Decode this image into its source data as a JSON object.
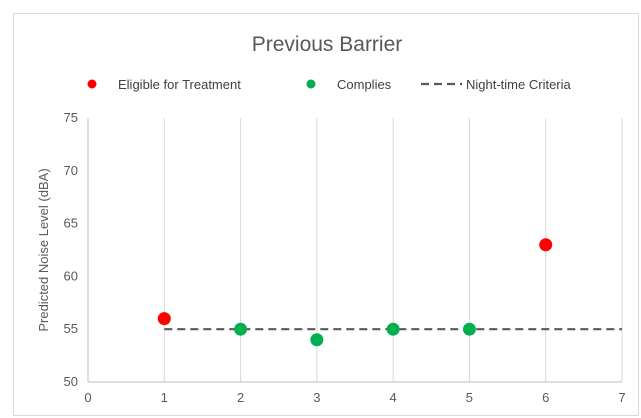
{
  "chart_data": {
    "type": "scatter",
    "title": "Previous Barrier",
    "xlabel": "",
    "ylabel": "Predicted Noise Level  (dBA)",
    "xlim": [
      0,
      7
    ],
    "ylim": [
      50,
      75
    ],
    "x_ticks": [
      "0",
      "1",
      "2",
      "3",
      "4",
      "5",
      "6",
      "7"
    ],
    "y_ticks": [
      "50",
      "55",
      "60",
      "65",
      "70",
      "75"
    ],
    "grid": "vertical",
    "legend_position": "top",
    "series": [
      {
        "name": "Eligible for Treatment",
        "kind": "scatter",
        "color": "#ff0000",
        "points": [
          {
            "x": 1,
            "y": 56
          },
          {
            "x": 6,
            "y": 63
          }
        ]
      },
      {
        "name": "Complies",
        "kind": "scatter",
        "color": "#00b050",
        "points": [
          {
            "x": 2,
            "y": 55
          },
          {
            "x": 3,
            "y": 54
          },
          {
            "x": 4,
            "y": 55
          },
          {
            "x": 5,
            "y": 55
          }
        ]
      },
      {
        "name": "Night-time Criteria",
        "kind": "line",
        "style": "dashed",
        "color": "#595959",
        "points": [
          {
            "x": 1,
            "y": 55
          },
          {
            "x": 7,
            "y": 55
          }
        ]
      }
    ]
  }
}
